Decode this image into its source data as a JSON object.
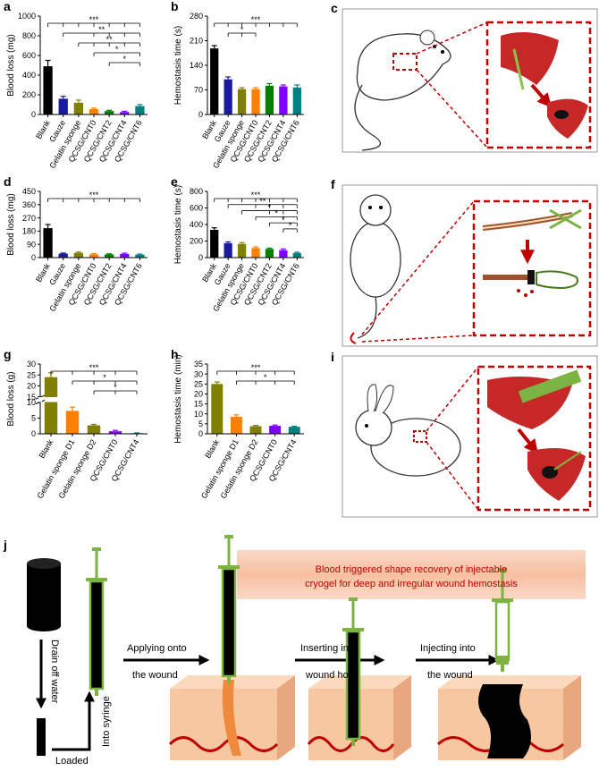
{
  "chart_data": [
    {
      "type": "bar",
      "label": "a",
      "ylabel": "Blood loss (mg)",
      "categories": [
        "Blank",
        "Gauze",
        "Gelatin sponge",
        "QCSG/CNT0",
        "QCSG/CNT2",
        "QCSG/CNT4",
        "QCSG/CNT6"
      ],
      "values": [
        490,
        160,
        120,
        55,
        35,
        25,
        85
      ],
      "errors": [
        60,
        25,
        25,
        10,
        8,
        8,
        15
      ],
      "colors": [
        "#000000",
        "#1a1a9e",
        "#808000",
        "#ff8000",
        "#008000",
        "#8000ff",
        "#008080"
      ],
      "ylim": [
        0,
        1000
      ],
      "yticks": [
        0,
        200,
        400,
        600,
        800,
        1000
      ],
      "significance": [
        {
          "text": "***",
          "from": "Blank",
          "to": [
            "Gauze",
            "Gelatin sponge",
            "QCSG/CNT0",
            "QCSG/CNT2",
            "QCSG/CNT4",
            "QCSG/CNT6"
          ]
        },
        {
          "text": "**",
          "from": "Gauze",
          "to": [
            "QCSG/CNT0",
            "QCSG/CNT2",
            "QCSG/CNT4",
            "QCSG/CNT6"
          ]
        },
        {
          "text": "**",
          "from": "Gelatin sponge",
          "to": [
            "QCSG/CNT0",
            "QCSG/CNT2",
            "QCSG/CNT4",
            "QCSG/CNT6"
          ]
        },
        {
          "text": "*",
          "from": "QCSG/CNT0",
          "to": [
            "QCSG/CNT6"
          ]
        },
        {
          "text": "*",
          "from": "QCSG/CNT2",
          "to": [
            "QCSG/CNT6"
          ]
        }
      ]
    },
    {
      "type": "bar",
      "label": "b",
      "ylabel": "Hemostasis time (s)",
      "categories": [
        "Blank",
        "Gauze",
        "Gelatin sponge",
        "QCSG/CNT0",
        "QCSG/CNT2",
        "QCSG/CNT4",
        "QCSG/CNT6"
      ],
      "values": [
        188,
        100,
        72,
        72,
        82,
        80,
        77
      ],
      "errors": [
        8,
        7,
        4,
        4,
        6,
        4,
        7
      ],
      "colors": [
        "#000000",
        "#1a1a9e",
        "#808000",
        "#ff8000",
        "#008000",
        "#8000ff",
        "#008080"
      ],
      "ylim": [
        0,
        280
      ],
      "yticks": [
        0,
        70,
        140,
        210,
        280
      ],
      "significance": [
        {
          "text": "***",
          "from": "Blank",
          "to": [
            "Gauze",
            "Gelatin sponge",
            "QCSG/CNT0",
            "QCSG/CNT2",
            "QCSG/CNT4",
            "QCSG/CNT6"
          ]
        },
        {
          "text": "*",
          "from": "Gauze",
          "to": [
            "Gelatin sponge",
            "QCSG/CNT0"
          ]
        }
      ]
    },
    {
      "type": "bar",
      "label": "d",
      "ylabel": "Blood loss (mg)",
      "categories": [
        "Blank",
        "Gauze",
        "Gelatin sponge",
        "QCSG/CNT0",
        "QCSG/CNT2",
        "QCSG/CNT4",
        "QCSG/CNT6"
      ],
      "values": [
        200,
        27,
        32,
        22,
        22,
        25,
        20
      ],
      "errors": [
        25,
        4,
        6,
        5,
        4,
        5,
        4
      ],
      "colors": [
        "#000000",
        "#1a1a9e",
        "#808000",
        "#ff8000",
        "#008000",
        "#8000ff",
        "#008080"
      ],
      "ylim": [
        0,
        450
      ],
      "yticks": [
        0,
        90,
        180,
        270,
        360,
        450
      ],
      "significance": [
        {
          "text": "***",
          "from": "Blank",
          "to": [
            "Gauze",
            "Gelatin sponge",
            "QCSG/CNT0",
            "QCSG/CNT2",
            "QCSG/CNT4",
            "QCSG/CNT6"
          ]
        }
      ]
    },
    {
      "type": "bar",
      "label": "e",
      "ylabel": "Hemostasis time (s)",
      "categories": [
        "Blank",
        "Gauze",
        "Gelatin sponge",
        "QCSG/CNT0",
        "QCSG/CNT2",
        "QCSG/CNT4",
        "QCSG/CNT6"
      ],
      "values": [
        335,
        175,
        165,
        115,
        105,
        90,
        55
      ],
      "errors": [
        25,
        15,
        15,
        15,
        10,
        15,
        10
      ],
      "colors": [
        "#000000",
        "#1a1a9e",
        "#808000",
        "#ff8000",
        "#008000",
        "#8000ff",
        "#008080"
      ],
      "ylim": [
        0,
        800
      ],
      "yticks": [
        0,
        200,
        400,
        600,
        800
      ],
      "significance": [
        {
          "text": "***",
          "from": "Blank",
          "to": [
            "Gauze",
            "Gelatin sponge",
            "QCSG/CNT0",
            "QCSG/CNT2",
            "QCSG/CNT4",
            "QCSG/CNT6"
          ]
        },
        {
          "text": "**",
          "from": "Gauze",
          "to": [
            "QCSG/CNT0",
            "QCSG/CNT2",
            "QCSG/CNT4",
            "QCSG/CNT6"
          ]
        },
        {
          "text": "*",
          "from": "Gelatin sponge",
          "to": [
            "QCSG/CNT2",
            "QCSG/CNT4",
            "QCSG/CNT6"
          ]
        },
        {
          "text": "*",
          "from": "QCSG/CNT0",
          "to": [
            "QCSG/CNT4",
            "QCSG/CNT6"
          ]
        },
        {
          "text": "*",
          "from": "QCSG/CNT2",
          "to": [
            "QCSG/CNT6"
          ]
        },
        {
          "text": "*",
          "from": "QCSG/CNT4",
          "to": [
            "QCSG/CNT6"
          ]
        }
      ]
    },
    {
      "type": "bar",
      "label": "g",
      "ylabel": "Blood loss (g)",
      "categories": [
        "Blank",
        "Gelatin sponge D1",
        "Gelatin sponge D2",
        "QCSG/CNT0",
        "QCSG/CNT4"
      ],
      "values": [
        24,
        7.3,
        2.7,
        0.8,
        0.2
      ],
      "errors": [
        2,
        1.2,
        0.3,
        0.3,
        0.1
      ],
      "colors": [
        "#808000",
        "#ff8000",
        "#808000",
        "#8000ff",
        "#008080"
      ],
      "ylim": [
        0,
        30
      ],
      "yticks": [
        0,
        5,
        10,
        15,
        20,
        25,
        30
      ],
      "ybreak": [
        10,
        15
      ],
      "significance": [
        {
          "text": "***",
          "from": "Blank",
          "to": [
            "Gelatin sponge D1",
            "Gelatin sponge D2",
            "QCSG/CNT0",
            "QCSG/CNT4"
          ]
        },
        {
          "text": "*",
          "from": "Gelatin sponge D1",
          "to": [
            "Gelatin sponge D2",
            "QCSG/CNT0",
            "QCSG/CNT4"
          ]
        },
        {
          "text": "*",
          "from": "Gelatin sponge D2",
          "to": [
            "QCSG/CNT0",
            "QCSG/CNT4"
          ]
        }
      ]
    },
    {
      "type": "bar",
      "label": "h",
      "ylabel": "Hemostasis time (min)",
      "categories": [
        "Blank",
        "Gelatin sponge D1",
        "Gelatin sponge D2",
        "QCSG/CNT0",
        "QCSG/CNT4"
      ],
      "values": [
        25,
        8.5,
        3.8,
        4.0,
        3.5
      ],
      "errors": [
        1,
        1,
        0.4,
        0.4,
        0.3
      ],
      "colors": [
        "#808000",
        "#ff8000",
        "#808000",
        "#8000ff",
        "#008080"
      ],
      "ylim": [
        0,
        35
      ],
      "yticks": [
        0,
        5,
        10,
        15,
        20,
        25,
        30,
        35
      ],
      "significance": [
        {
          "text": "***",
          "from": "Blank",
          "to": [
            "Gelatin sponge D1",
            "Gelatin sponge D2",
            "QCSG/CNT0",
            "QCSG/CNT4"
          ]
        },
        {
          "text": "*",
          "from": "Gelatin sponge D1",
          "to": [
            "Gelatin sponge D2",
            "QCSG/CNT0",
            "QCSG/CNT4"
          ]
        }
      ]
    }
  ],
  "illustrations": [
    {
      "label": "c"
    },
    {
      "label": "f"
    },
    {
      "label": "i"
    },
    {
      "label": "j",
      "texts": [
        "Drain off water",
        "Loaded",
        "Into syringe",
        "Applying onto",
        "the wound",
        "Inserting into",
        "wound hole",
        "Injecting into",
        "the wound",
        "Blood triggered shape recovery of injectable",
        "cryogel for deep and irregular wound hemostasis"
      ]
    }
  ]
}
